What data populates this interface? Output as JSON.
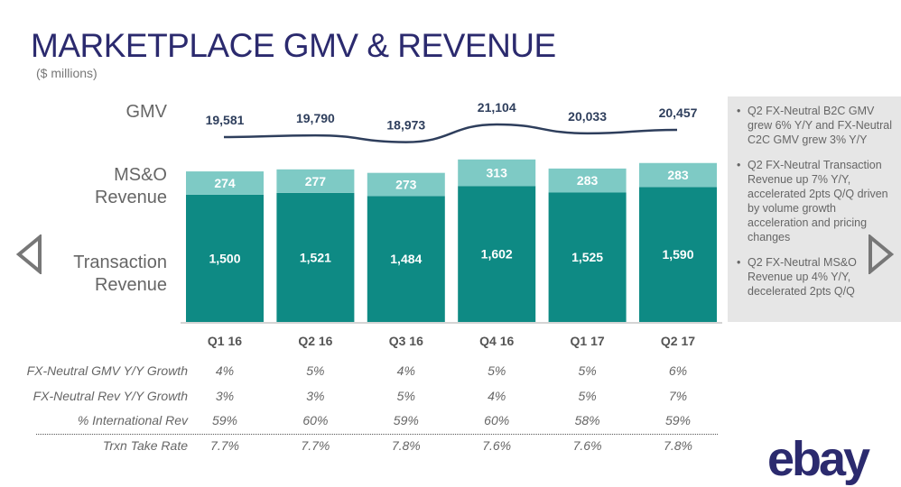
{
  "title": "MARKETPLACE GMV & REVENUE",
  "subtitle": "($ millions)",
  "row_labels": {
    "gmv": "GMV",
    "mso": "MS&O Revenue",
    "txn": "Transaction Revenue"
  },
  "chart_data": {
    "type": "bar",
    "stacked": true,
    "categories": [
      "Q1 16",
      "Q2 16",
      "Q3 16",
      "Q4 16",
      "Q1 17",
      "Q2 17"
    ],
    "series": [
      {
        "name": "Transaction Revenue",
        "values": [
          1500,
          1521,
          1484,
          1602,
          1525,
          1590
        ],
        "color": "#0e8a84"
      },
      {
        "name": "MS&O Revenue",
        "values": [
          274,
          277,
          273,
          313,
          283,
          283
        ],
        "color": "#7ecac5"
      }
    ],
    "line": {
      "name": "GMV",
      "values": [
        19581,
        19790,
        18973,
        21104,
        20033,
        20457
      ],
      "color": "#2e3e5c"
    }
  },
  "table": {
    "rows": [
      {
        "label": "FX-Neutral GMV Y/Y Growth",
        "values": [
          "4%",
          "5%",
          "4%",
          "5%",
          "5%",
          "6%"
        ]
      },
      {
        "label": "FX-Neutral Rev Y/Y Growth",
        "values": [
          "3%",
          "3%",
          "5%",
          "4%",
          "5%",
          "7%"
        ]
      },
      {
        "label": "% International Rev",
        "values": [
          "59%",
          "60%",
          "59%",
          "60%",
          "58%",
          "59%"
        ]
      },
      {
        "label": "Trxn Take Rate",
        "values": [
          "7.7%",
          "7.7%",
          "7.8%",
          "7.6%",
          "7.6%",
          "7.8%"
        ]
      }
    ]
  },
  "bullets": [
    "Q2 FX-Neutral B2C GMV grew 6% Y/Y and FX-Neutral C2C GMV grew 3% Y/Y",
    "Q2 FX-Neutral Transaction Revenue up 7% Y/Y, accelerated 2pts Q/Q driven by volume growth acceleration and pricing changes",
    "Q2 FX-Neutral MS&O Revenue up 4% Y/Y, decelerated 2pts Q/Q"
  ],
  "logo": "ebay",
  "nav": {
    "prev": "previous-slide",
    "next": "next-slide"
  }
}
